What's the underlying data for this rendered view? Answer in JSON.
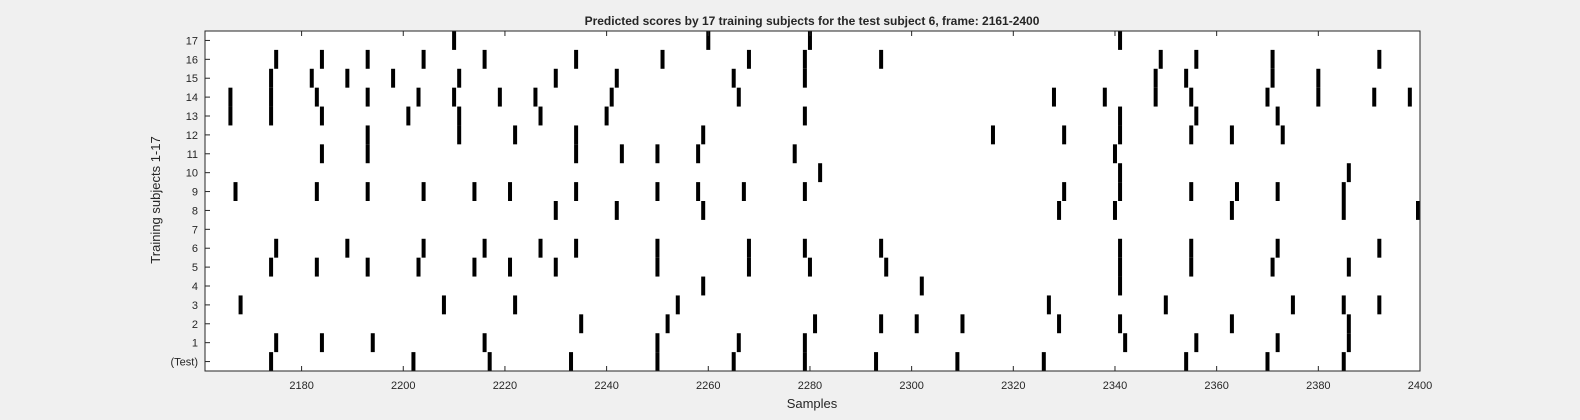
{
  "chart_data": {
    "type": "heatmap",
    "title": "Predicted scores by 17 training subjects for the test subject 6, frame: 2161-2400",
    "xlabel": "Samples",
    "ylabel": "Training subjects 1-17",
    "xlim": [
      2161,
      2400
    ],
    "xticks": [
      2180,
      2200,
      2220,
      2240,
      2260,
      2280,
      2300,
      2320,
      2340,
      2360,
      2380,
      2400
    ],
    "rows": [
      "(Test)",
      "1",
      "2",
      "3",
      "4",
      "5",
      "6",
      "7",
      "8",
      "9",
      "10",
      "11",
      "12",
      "13",
      "14",
      "15",
      "16",
      "17"
    ],
    "grid": false,
    "colors": {
      "background": "#ffffff",
      "mark": "#000000",
      "figure": "#f0f0f0"
    },
    "series": [
      {
        "row": "(Test)",
        "x": [
          2174,
          2202,
          2217,
          2233,
          2250,
          2265,
          2279,
          2293,
          2309,
          2326,
          2354,
          2370,
          2385
        ]
      },
      {
        "row": "1",
        "x": [
          2175,
          2184,
          2194,
          2216,
          2250,
          2266,
          2279,
          2342,
          2356,
          2372,
          2386
        ]
      },
      {
        "row": "2",
        "x": [
          2235,
          2252,
          2281,
          2294,
          2301,
          2310,
          2329,
          2341,
          2363,
          2386
        ]
      },
      {
        "row": "3",
        "x": [
          2168,
          2208,
          2222,
          2254,
          2327,
          2350,
          2375,
          2385,
          2392
        ]
      },
      {
        "row": "4",
        "x": [
          2259,
          2302,
          2341
        ]
      },
      {
        "row": "5",
        "x": [
          2174,
          2183,
          2193,
          2203,
          2214,
          2221,
          2230,
          2250,
          2268,
          2280,
          2295,
          2341,
          2355,
          2371,
          2386
        ]
      },
      {
        "row": "6",
        "x": [
          2175,
          2189,
          2204,
          2216,
          2227,
          2234,
          2250,
          2268,
          2279,
          2294,
          2341,
          2355,
          2372,
          2392
        ]
      },
      {
        "row": "7",
        "x": []
      },
      {
        "row": "8",
        "x": [
          2230,
          2242,
          2259,
          2329,
          2340,
          2363,
          2385,
          2400
        ]
      },
      {
        "row": "9",
        "x": [
          2167,
          2183,
          2193,
          2204,
          2214,
          2221,
          2234,
          2250,
          2258,
          2267,
          2279,
          2330,
          2341,
          2355,
          2364,
          2372,
          2385
        ]
      },
      {
        "row": "10",
        "x": [
          2282,
          2341,
          2386
        ]
      },
      {
        "row": "11",
        "x": [
          2184,
          2193,
          2234,
          2243,
          2250,
          2258,
          2277,
          2340
        ]
      },
      {
        "row": "12",
        "x": [
          2193,
          2211,
          2222,
          2234,
          2259,
          2316,
          2330,
          2341,
          2355,
          2363,
          2373
        ]
      },
      {
        "row": "13",
        "x": [
          2166,
          2174,
          2184,
          2201,
          2211,
          2227,
          2240,
          2279,
          2341,
          2356,
          2372
        ]
      },
      {
        "row": "14",
        "x": [
          2166,
          2174,
          2183,
          2193,
          2203,
          2210,
          2219,
          2226,
          2241,
          2266,
          2328,
          2338,
          2348,
          2355,
          2370,
          2380,
          2391,
          2398
        ]
      },
      {
        "row": "15",
        "x": [
          2174,
          2182,
          2189,
          2198,
          2211,
          2230,
          2242,
          2265,
          2279,
          2348,
          2354,
          2371,
          2380
        ]
      },
      {
        "row": "16",
        "x": [
          2175,
          2184,
          2193,
          2204,
          2216,
          2234,
          2251,
          2268,
          2279,
          2294,
          2349,
          2356,
          2371,
          2392
        ]
      },
      {
        "row": "17",
        "x": [
          2210,
          2260,
          2280,
          2341
        ]
      }
    ]
  }
}
